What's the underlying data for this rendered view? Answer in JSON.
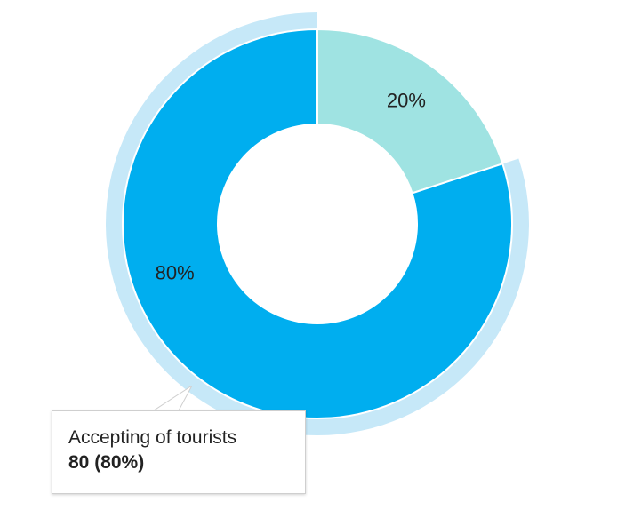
{
  "chart_data": {
    "type": "pie",
    "donut": true,
    "slices": [
      {
        "name": "",
        "value": 20,
        "label": "20%",
        "color": "#9fe3e2"
      },
      {
        "name": "Accepting of tourists",
        "value": 80,
        "label": "80%",
        "color": "#00aeef",
        "highlighted": true
      }
    ],
    "highlight_color": "#c6e8f8",
    "tooltip": {
      "name": "Accepting of tourists",
      "value_text": "80 (80%)"
    },
    "legend": "none"
  }
}
